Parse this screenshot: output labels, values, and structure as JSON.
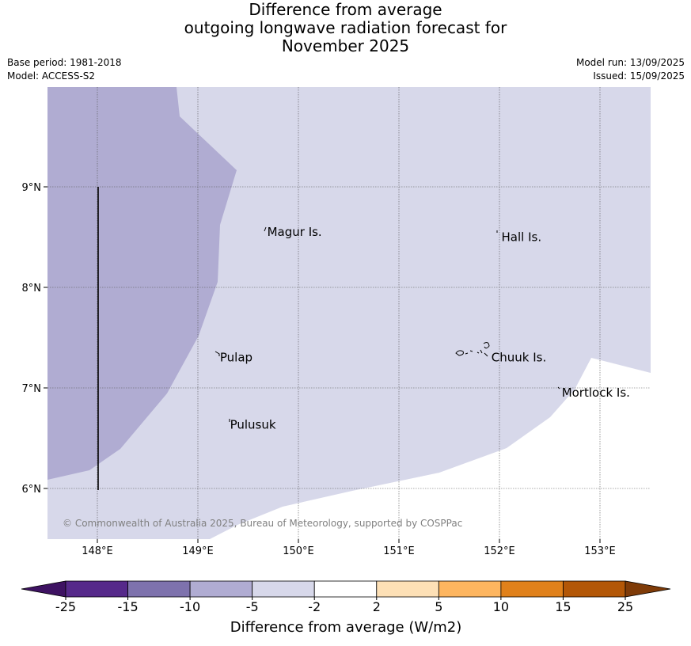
{
  "title_lines": [
    "Difference from average",
    "outgoing longwave radiation forecast for",
    "November 2025"
  ],
  "meta": {
    "base_period": "Base period: 1981-2018",
    "model": "Model: ACCESS-S2",
    "model_run": "Model run: 13/09/2025",
    "issued": "Issued: 15/09/2025"
  },
  "map": {
    "lon_range": [
      147.5,
      153.5
    ],
    "lat_range": [
      5.5,
      10.0
    ],
    "lon_ticks": [
      {
        "value": 148,
        "label": "148°E"
      },
      {
        "value": 149,
        "label": "149°E"
      },
      {
        "value": 150,
        "label": "150°E"
      },
      {
        "value": 151,
        "label": "151°E"
      },
      {
        "value": 152,
        "label": "152°E"
      },
      {
        "value": 153,
        "label": "153°E"
      }
    ],
    "lat_ticks": [
      {
        "value": 9,
        "label": "9°N"
      },
      {
        "value": 8,
        "label": "8°N"
      },
      {
        "value": 7,
        "label": "7°N"
      },
      {
        "value": 6,
        "label": "6°N"
      }
    ],
    "places": [
      {
        "name": "Magur Is.",
        "lon": 149.67,
        "lat": 8.55
      },
      {
        "name": "Hall Is.",
        "lon": 152.0,
        "lat": 8.5
      },
      {
        "name": "Pulap",
        "lon": 149.2,
        "lat": 7.3
      },
      {
        "name": "Chuuk Is.",
        "lon": 151.9,
        "lat": 7.3
      },
      {
        "name": "Mortlock Is.",
        "lon": 152.6,
        "lat": 6.95
      },
      {
        "name": "Pulusuk",
        "lon": 149.3,
        "lat": 6.63
      }
    ],
    "copyright": "© Commonwealth of Australia 2025, Bureau of Meteorology, supported by COSPPac",
    "colors": {
      "band_minus10_to_minus5": "#b0acd2",
      "band_minus5_to_minus2": "#d7d8ea",
      "band_minus2_to_2": "#ffffff"
    }
  },
  "colorbar": {
    "label": "Difference from average (W/m2)",
    "ticks": [
      "-25",
      "-15",
      "-10",
      "-5",
      "-2",
      "2",
      "5",
      "10",
      "15",
      "25"
    ],
    "colors": [
      "#3e1262",
      "#56298a",
      "#7e72ad",
      "#b0acd2",
      "#d7d8ea",
      "#ffffff",
      "#fde0b6",
      "#fdb55f",
      "#e0811b",
      "#b35707",
      "#7f3b08"
    ]
  }
}
